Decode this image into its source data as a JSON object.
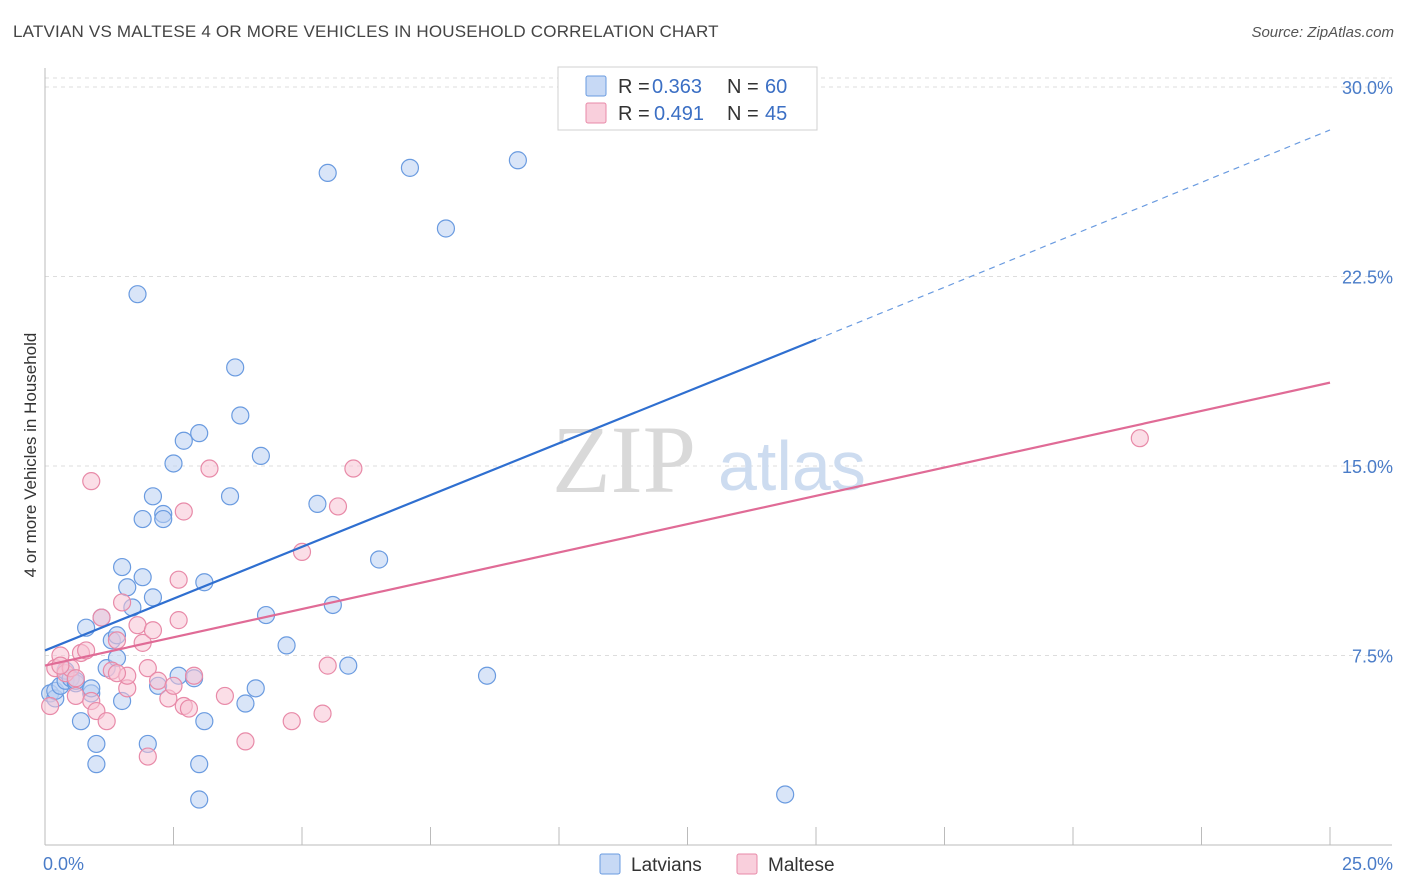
{
  "chart_data": {
    "type": "scatter",
    "title": "LATVIAN VS MALTESE 4 OR MORE VEHICLES IN HOUSEHOLD CORRELATION CHART",
    "source": "Source: ZipAtlas.com",
    "xlabel": "",
    "ylabel": "4 or more Vehicles in Household",
    "xlim": [
      0,
      25
    ],
    "ylim": [
      0,
      30
    ],
    "x_ticks_labeled": [
      "0.0%",
      "25.0%"
    ],
    "y_ticks": [
      7.5,
      15.0,
      22.5,
      30.0
    ],
    "y_tick_labels": [
      "7.5%",
      "15.0%",
      "22.5%",
      "30.0%"
    ],
    "grid": true,
    "watermark": {
      "zip": "ZIP",
      "atlas": "atlas"
    },
    "legend_top": [
      {
        "r_label": "R =",
        "r": "0.363",
        "n_label": "N =",
        "n": "60"
      },
      {
        "r_label": "R =",
        "r": "0.491",
        "n_label": "N =",
        "n": "45"
      }
    ],
    "series": [
      {
        "name": "Latvians",
        "color": "#6a9be0",
        "fill": "#b9d0f2",
        "trend": {
          "x0": 0,
          "y0": 7.7,
          "x1": 15,
          "y1": 20.0,
          "dash_to_x": 25,
          "dash_to_y": 28.3
        },
        "points": [
          [
            0.1,
            6.0
          ],
          [
            0.2,
            5.8
          ],
          [
            0.2,
            6.1
          ],
          [
            0.3,
            6.3
          ],
          [
            0.4,
            6.5
          ],
          [
            0.4,
            6.9
          ],
          [
            0.5,
            6.6
          ],
          [
            0.6,
            6.4
          ],
          [
            0.6,
            6.5
          ],
          [
            0.7,
            4.9
          ],
          [
            0.8,
            8.6
          ],
          [
            0.9,
            6.0
          ],
          [
            0.9,
            6.2
          ],
          [
            1.0,
            4.0
          ],
          [
            1.0,
            3.2
          ],
          [
            1.1,
            9.0
          ],
          [
            1.2,
            7.0
          ],
          [
            1.3,
            8.1
          ],
          [
            1.4,
            8.3
          ],
          [
            1.4,
            7.4
          ],
          [
            1.5,
            11.0
          ],
          [
            1.5,
            5.7
          ],
          [
            1.6,
            10.2
          ],
          [
            1.7,
            9.4
          ],
          [
            1.8,
            21.8
          ],
          [
            1.9,
            10.6
          ],
          [
            1.9,
            12.9
          ],
          [
            2.0,
            4.0
          ],
          [
            2.1,
            9.8
          ],
          [
            2.1,
            13.8
          ],
          [
            2.2,
            6.3
          ],
          [
            2.3,
            13.1
          ],
          [
            2.3,
            12.9
          ],
          [
            2.5,
            15.1
          ],
          [
            2.6,
            6.7
          ],
          [
            2.7,
            16.0
          ],
          [
            2.9,
            6.6
          ],
          [
            3.0,
            16.3
          ],
          [
            3.0,
            3.2
          ],
          [
            3.1,
            10.4
          ],
          [
            3.1,
            4.9
          ],
          [
            3.6,
            13.8
          ],
          [
            3.7,
            18.9
          ],
          [
            3.8,
            17.0
          ],
          [
            3.9,
            5.6
          ],
          [
            4.1,
            6.2
          ],
          [
            4.2,
            15.4
          ],
          [
            4.3,
            9.1
          ],
          [
            4.7,
            7.9
          ],
          [
            5.3,
            13.5
          ],
          [
            5.5,
            26.6
          ],
          [
            5.6,
            9.5
          ],
          [
            5.9,
            7.1
          ],
          [
            6.5,
            11.3
          ],
          [
            7.1,
            26.8
          ],
          [
            7.8,
            24.4
          ],
          [
            8.6,
            6.7
          ],
          [
            9.2,
            27.1
          ],
          [
            14.4,
            2.0
          ],
          [
            3.0,
            1.8
          ]
        ]
      },
      {
        "name": "Maltese",
        "color": "#e88aa8",
        "fill": "#f7c3d3",
        "trend": {
          "x0": 0,
          "y0": 7.1,
          "x1": 25,
          "y1": 18.3
        },
        "points": [
          [
            0.1,
            5.5
          ],
          [
            0.2,
            7.0
          ],
          [
            0.3,
            7.5
          ],
          [
            0.4,
            6.8
          ],
          [
            0.5,
            7.0
          ],
          [
            0.6,
            5.9
          ],
          [
            0.7,
            7.6
          ],
          [
            0.8,
            7.7
          ],
          [
            0.9,
            5.7
          ],
          [
            0.9,
            14.4
          ],
          [
            1.0,
            5.3
          ],
          [
            1.1,
            9.0
          ],
          [
            1.2,
            4.9
          ],
          [
            1.3,
            6.9
          ],
          [
            1.4,
            8.1
          ],
          [
            1.5,
            9.6
          ],
          [
            1.6,
            6.2
          ],
          [
            1.6,
            6.7
          ],
          [
            1.8,
            8.7
          ],
          [
            1.9,
            8.0
          ],
          [
            2.0,
            3.5
          ],
          [
            2.0,
            7.0
          ],
          [
            2.1,
            8.5
          ],
          [
            2.2,
            6.5
          ],
          [
            2.4,
            5.8
          ],
          [
            2.5,
            6.3
          ],
          [
            2.6,
            8.9
          ],
          [
            2.6,
            10.5
          ],
          [
            2.7,
            13.2
          ],
          [
            2.7,
            5.5
          ],
          [
            2.8,
            5.4
          ],
          [
            2.9,
            6.7
          ],
          [
            3.2,
            14.9
          ],
          [
            3.5,
            5.9
          ],
          [
            3.9,
            4.1
          ],
          [
            4.8,
            4.9
          ],
          [
            5.0,
            11.6
          ],
          [
            5.4,
            5.2
          ],
          [
            5.5,
            7.1
          ],
          [
            5.7,
            13.4
          ],
          [
            6.0,
            14.9
          ],
          [
            0.3,
            7.1
          ],
          [
            0.6,
            6.6
          ],
          [
            1.4,
            6.8
          ],
          [
            21.3,
            16.1
          ]
        ]
      }
    ]
  },
  "colors": {
    "axis": "#bbbbbb",
    "grid": "#dddddd",
    "tick_label": "#4a7cc8"
  }
}
